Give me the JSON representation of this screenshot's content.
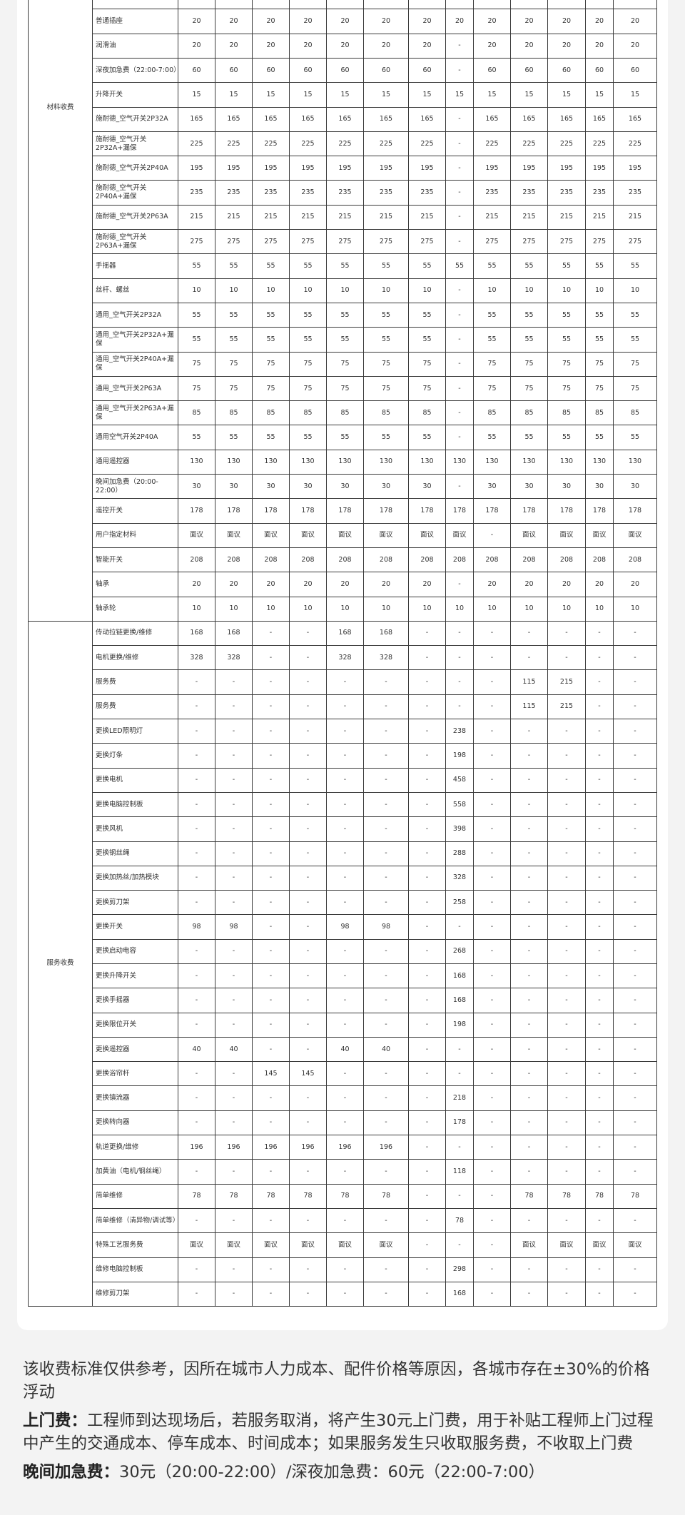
{
  "table": {
    "material_category": "材料收费",
    "service_category": "服务收费",
    "material_rows": [
      {
        "name": "普通插座",
        "values": [
          "20",
          "20",
          "20",
          "20",
          "20",
          "20",
          "20",
          "20",
          "20",
          "20",
          "20",
          "20",
          "20"
        ]
      },
      {
        "name": "润滑油",
        "values": [
          "20",
          "20",
          "20",
          "20",
          "20",
          "20",
          "20",
          "-",
          "20",
          "20",
          "20",
          "20",
          "20"
        ]
      },
      {
        "name": "深夜加急费（22:00-7:00）",
        "values": [
          "60",
          "60",
          "60",
          "60",
          "60",
          "60",
          "60",
          "-",
          "60",
          "60",
          "60",
          "60",
          "60"
        ]
      },
      {
        "name": "升降开关",
        "values": [
          "15",
          "15",
          "15",
          "15",
          "15",
          "15",
          "15",
          "15",
          "15",
          "15",
          "15",
          "15",
          "15"
        ]
      },
      {
        "name": "施耐德_空气开关2P32A",
        "values": [
          "165",
          "165",
          "165",
          "165",
          "165",
          "165",
          "165",
          "-",
          "165",
          "165",
          "165",
          "165",
          "165"
        ]
      },
      {
        "name": "施耐德_空气开关2P32A+漏保",
        "values": [
          "225",
          "225",
          "225",
          "225",
          "225",
          "225",
          "225",
          "-",
          "225",
          "225",
          "225",
          "225",
          "225"
        ]
      },
      {
        "name": "施耐德_空气开关2P40A",
        "values": [
          "195",
          "195",
          "195",
          "195",
          "195",
          "195",
          "195",
          "-",
          "195",
          "195",
          "195",
          "195",
          "195"
        ]
      },
      {
        "name": "施耐德_空气开关2P40A+漏保",
        "values": [
          "235",
          "235",
          "235",
          "235",
          "235",
          "235",
          "235",
          "-",
          "235",
          "235",
          "235",
          "235",
          "235"
        ]
      },
      {
        "name": "施耐德_空气开关2P63A",
        "values": [
          "215",
          "215",
          "215",
          "215",
          "215",
          "215",
          "215",
          "-",
          "215",
          "215",
          "215",
          "215",
          "215"
        ]
      },
      {
        "name": "施耐德_空气开关2P63A+漏保",
        "values": [
          "275",
          "275",
          "275",
          "275",
          "275",
          "275",
          "275",
          "-",
          "275",
          "275",
          "275",
          "275",
          "275"
        ]
      },
      {
        "name": "手摇器",
        "values": [
          "55",
          "55",
          "55",
          "55",
          "55",
          "55",
          "55",
          "55",
          "55",
          "55",
          "55",
          "55",
          "55"
        ]
      },
      {
        "name": "丝杆、螺丝",
        "values": [
          "10",
          "10",
          "10",
          "10",
          "10",
          "10",
          "10",
          "-",
          "10",
          "10",
          "10",
          "10",
          "10"
        ]
      },
      {
        "name": "通用_空气开关2P32A",
        "values": [
          "55",
          "55",
          "55",
          "55",
          "55",
          "55",
          "55",
          "-",
          "55",
          "55",
          "55",
          "55",
          "55"
        ]
      },
      {
        "name": "通用_空气开关2P32A+漏保",
        "values": [
          "55",
          "55",
          "55",
          "55",
          "55",
          "55",
          "55",
          "-",
          "55",
          "55",
          "55",
          "55",
          "55"
        ]
      },
      {
        "name": "通用_空气开关2P40A+漏保",
        "values": [
          "75",
          "75",
          "75",
          "75",
          "75",
          "75",
          "75",
          "-",
          "75",
          "75",
          "75",
          "75",
          "75"
        ]
      },
      {
        "name": "通用_空气开关2P63A",
        "values": [
          "75",
          "75",
          "75",
          "75",
          "75",
          "75",
          "75",
          "-",
          "75",
          "75",
          "75",
          "75",
          "75"
        ]
      },
      {
        "name": "通用_空气开关2P63A+漏保",
        "values": [
          "85",
          "85",
          "85",
          "85",
          "85",
          "85",
          "85",
          "-",
          "85",
          "85",
          "85",
          "85",
          "85"
        ]
      },
      {
        "name": "通用空气开关2P40A",
        "values": [
          "55",
          "55",
          "55",
          "55",
          "55",
          "55",
          "55",
          "-",
          "55",
          "55",
          "55",
          "55",
          "55"
        ]
      },
      {
        "name": "通用遥控器",
        "values": [
          "130",
          "130",
          "130",
          "130",
          "130",
          "130",
          "130",
          "130",
          "130",
          "130",
          "130",
          "130",
          "130"
        ]
      },
      {
        "name": "晚间加急费（20:00-22:00）",
        "values": [
          "30",
          "30",
          "30",
          "30",
          "30",
          "30",
          "30",
          "-",
          "30",
          "30",
          "30",
          "30",
          "30"
        ]
      },
      {
        "name": "遥控开关",
        "values": [
          "178",
          "178",
          "178",
          "178",
          "178",
          "178",
          "178",
          "178",
          "178",
          "178",
          "178",
          "178",
          "178"
        ]
      },
      {
        "name": "用户指定材料",
        "values": [
          "面议",
          "面议",
          "面议",
          "面议",
          "面议",
          "面议",
          "面议",
          "面议",
          "-",
          "面议",
          "面议",
          "面议",
          "面议"
        ]
      },
      {
        "name": "智能开关",
        "values": [
          "208",
          "208",
          "208",
          "208",
          "208",
          "208",
          "208",
          "208",
          "208",
          "208",
          "208",
          "208",
          "208"
        ]
      },
      {
        "name": "轴承",
        "values": [
          "20",
          "20",
          "20",
          "20",
          "20",
          "20",
          "20",
          "-",
          "20",
          "20",
          "20",
          "20",
          "20"
        ]
      },
      {
        "name": "轴承轮",
        "values": [
          "10",
          "10",
          "10",
          "10",
          "10",
          "10",
          "10",
          "10",
          "10",
          "10",
          "10",
          "10",
          "10"
        ]
      }
    ],
    "service_rows": [
      {
        "name": "传动拉链更换/维修",
        "values": [
          "168",
          "168",
          "-",
          "-",
          "168",
          "168",
          "-",
          "-",
          "-",
          "-",
          "-",
          "-",
          "-"
        ]
      },
      {
        "name": "电机更换/维修",
        "values": [
          "328",
          "328",
          "-",
          "-",
          "328",
          "328",
          "-",
          "-",
          "-",
          "-",
          "-",
          "-",
          "-"
        ]
      },
      {
        "name": "服务费",
        "values": [
          "-",
          "-",
          "-",
          "-",
          "-",
          "-",
          "-",
          "-",
          "-",
          "115",
          "215",
          "-",
          "-"
        ]
      },
      {
        "name": "服务费",
        "values": [
          "-",
          "-",
          "-",
          "-",
          "-",
          "-",
          "-",
          "-",
          "-",
          "115",
          "215",
          "-",
          "-"
        ]
      },
      {
        "name": "更换LED照明灯",
        "values": [
          "-",
          "-",
          "-",
          "-",
          "-",
          "-",
          "-",
          "238",
          "-",
          "-",
          "-",
          "-",
          "-"
        ]
      },
      {
        "name": "更换灯条",
        "values": [
          "-",
          "-",
          "-",
          "-",
          "-",
          "-",
          "-",
          "198",
          "-",
          "-",
          "-",
          "-",
          "-"
        ]
      },
      {
        "name": "更换电机",
        "values": [
          "-",
          "-",
          "-",
          "-",
          "-",
          "-",
          "-",
          "458",
          "-",
          "-",
          "-",
          "-",
          "-"
        ]
      },
      {
        "name": "更换电脑控制板",
        "values": [
          "-",
          "-",
          "-",
          "-",
          "-",
          "-",
          "-",
          "558",
          "-",
          "-",
          "-",
          "-",
          "-"
        ]
      },
      {
        "name": "更换风机",
        "values": [
          "-",
          "-",
          "-",
          "-",
          "-",
          "-",
          "-",
          "398",
          "-",
          "-",
          "-",
          "-",
          "-"
        ]
      },
      {
        "name": "更换钢丝绳",
        "values": [
          "-",
          "-",
          "-",
          "-",
          "-",
          "-",
          "-",
          "288",
          "-",
          "-",
          "-",
          "-",
          "-"
        ]
      },
      {
        "name": "更换加热丝/加热模块",
        "values": [
          "-",
          "-",
          "-",
          "-",
          "-",
          "-",
          "-",
          "328",
          "-",
          "-",
          "-",
          "-",
          "-"
        ]
      },
      {
        "name": "更换剪刀架",
        "values": [
          "-",
          "-",
          "-",
          "-",
          "-",
          "-",
          "-",
          "258",
          "-",
          "-",
          "-",
          "-",
          "-"
        ]
      },
      {
        "name": "更换开关",
        "values": [
          "98",
          "98",
          "-",
          "-",
          "98",
          "98",
          "-",
          "-",
          "-",
          "-",
          "-",
          "-",
          "-"
        ]
      },
      {
        "name": "更换启动电容",
        "values": [
          "-",
          "-",
          "-",
          "-",
          "-",
          "-",
          "-",
          "268",
          "-",
          "-",
          "-",
          "-",
          "-"
        ]
      },
      {
        "name": "更换升降开关",
        "values": [
          "-",
          "-",
          "-",
          "-",
          "-",
          "-",
          "-",
          "168",
          "-",
          "-",
          "-",
          "-",
          "-"
        ]
      },
      {
        "name": "更换手摇器",
        "values": [
          "-",
          "-",
          "-",
          "-",
          "-",
          "-",
          "-",
          "168",
          "-",
          "-",
          "-",
          "-",
          "-"
        ]
      },
      {
        "name": "更换限位开关",
        "values": [
          "-",
          "-",
          "-",
          "-",
          "-",
          "-",
          "-",
          "198",
          "-",
          "-",
          "-",
          "-",
          "-"
        ]
      },
      {
        "name": "更换遥控器",
        "values": [
          "40",
          "40",
          "-",
          "-",
          "40",
          "40",
          "-",
          "-",
          "-",
          "-",
          "-",
          "-",
          "-"
        ]
      },
      {
        "name": "更换浴帘杆",
        "values": [
          "-",
          "-",
          "145",
          "145",
          "-",
          "-",
          "-",
          "-",
          "-",
          "-",
          "-",
          "-",
          "-"
        ]
      },
      {
        "name": "更换镇流器",
        "values": [
          "-",
          "-",
          "-",
          "-",
          "-",
          "-",
          "-",
          "218",
          "-",
          "-",
          "-",
          "-",
          "-"
        ]
      },
      {
        "name": "更换转向器",
        "values": [
          "-",
          "-",
          "-",
          "-",
          "-",
          "-",
          "-",
          "178",
          "-",
          "-",
          "-",
          "-",
          "-"
        ]
      },
      {
        "name": "轨道更换/维修",
        "values": [
          "196",
          "196",
          "196",
          "196",
          "196",
          "196",
          "-",
          "-",
          "-",
          "-",
          "-",
          "-",
          "-"
        ]
      },
      {
        "name": "加黄油（电机/钢丝绳）",
        "values": [
          "-",
          "-",
          "-",
          "-",
          "-",
          "-",
          "-",
          "118",
          "-",
          "-",
          "-",
          "-",
          "-"
        ]
      },
      {
        "name": "简单维修",
        "values": [
          "78",
          "78",
          "78",
          "78",
          "78",
          "78",
          "-",
          "-",
          "-",
          "78",
          "78",
          "78",
          "78"
        ]
      },
      {
        "name": "简单维修（清异物/调试等）",
        "values": [
          "-",
          "-",
          "-",
          "-",
          "-",
          "-",
          "-",
          "78",
          "-",
          "-",
          "-",
          "-",
          "-"
        ]
      },
      {
        "name": "特殊工艺服务费",
        "values": [
          "面议",
          "面议",
          "面议",
          "面议",
          "面议",
          "面议",
          "-",
          "-",
          "-",
          "面议",
          "面议",
          "面议",
          "面议"
        ]
      },
      {
        "name": "维修电脑控制板",
        "values": [
          "-",
          "-",
          "-",
          "-",
          "-",
          "-",
          "-",
          "298",
          "-",
          "-",
          "-",
          "-",
          "-"
        ]
      },
      {
        "name": "维修剪刀架",
        "values": [
          "-",
          "-",
          "-",
          "-",
          "-",
          "-",
          "-",
          "168",
          "-",
          "-",
          "-",
          "-",
          "-"
        ]
      }
    ]
  },
  "footer": {
    "disclaimer": "该收费标准仅供参考，因所在城市人力成本、配件价格等原因，各城市存在±30%的价格浮动",
    "visit_fee_label": "上门费：",
    "visit_fee_text": "工程师到达现场后，若服务取消，将产生30元上门费，用于补贴工程师上门过程中产生的交通成本、停车成本、时间成本；如果服务发生只收取服务费，不收取上门费",
    "urgent_fee_label": "晚间加急费：",
    "urgent_fee_text": "30元（20:00-22:00）/深夜加急费：60元（22:00-7:00）"
  }
}
